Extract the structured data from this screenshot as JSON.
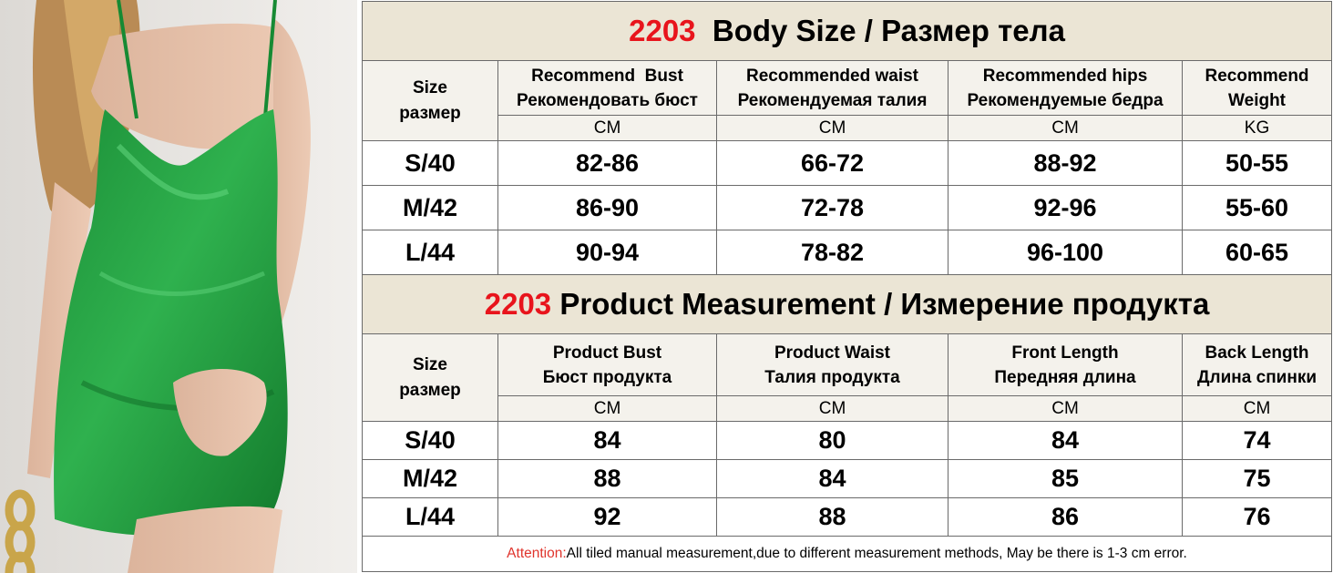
{
  "body_size": {
    "title_number": "2203",
    "title_text": "Body Size / Размер тела",
    "size_label_en": "Size",
    "size_label_ru": "размер",
    "columns": [
      {
        "en": "Recommend  Bust",
        "ru": "Рекомендовать бюст",
        "unit": "CM"
      },
      {
        "en": "Recommended waist",
        "ru": "Рекомендуемая талия",
        "unit": "CM"
      },
      {
        "en": "Recommended hips",
        "ru": "Рекомендуемые бедра",
        "unit": "CM"
      },
      {
        "en": "Recommend",
        "ru": "Weight",
        "unit": "KG"
      }
    ],
    "rows": [
      {
        "size": "S/40",
        "values": [
          "82-86",
          "66-72",
          "88-92",
          "50-55"
        ]
      },
      {
        "size": "M/42",
        "values": [
          "86-90",
          "72-78",
          "92-96",
          "55-60"
        ]
      },
      {
        "size": "L/44",
        "values": [
          "90-94",
          "78-82",
          "96-100",
          "60-65"
        ]
      }
    ]
  },
  "product_measurement": {
    "title_number": "2203",
    "title_text": "Product Measurement / Измерение продукта",
    "size_label_en": "Size",
    "size_label_ru": "размер",
    "columns": [
      {
        "en": "Product Bust",
        "ru": "Бюст продукта",
        "unit": "CM"
      },
      {
        "en": "Product Waist",
        "ru": "Талия продукта",
        "unit": "CM"
      },
      {
        "en": "Front Length",
        "ru": "Передняя длина",
        "unit": "CM"
      },
      {
        "en": "Back Length",
        "ru": "Длина спинки",
        "unit": "CM"
      }
    ],
    "rows": [
      {
        "size": "S/40",
        "values": [
          "84",
          "80",
          "84",
          "74"
        ]
      },
      {
        "size": "M/42",
        "values": [
          "88",
          "84",
          "85",
          "75"
        ]
      },
      {
        "size": "L/44",
        "values": [
          "92",
          "88",
          "86",
          "76"
        ]
      }
    ]
  },
  "note": {
    "label": "Attention:",
    "text": "All tiled manual measurement,due to different measurement methods, May be there is 1-3 cm error."
  },
  "colors": {
    "title_number": "#e8141c",
    "title_background": "#ebe5d5",
    "dress": "#1f9a3c"
  }
}
